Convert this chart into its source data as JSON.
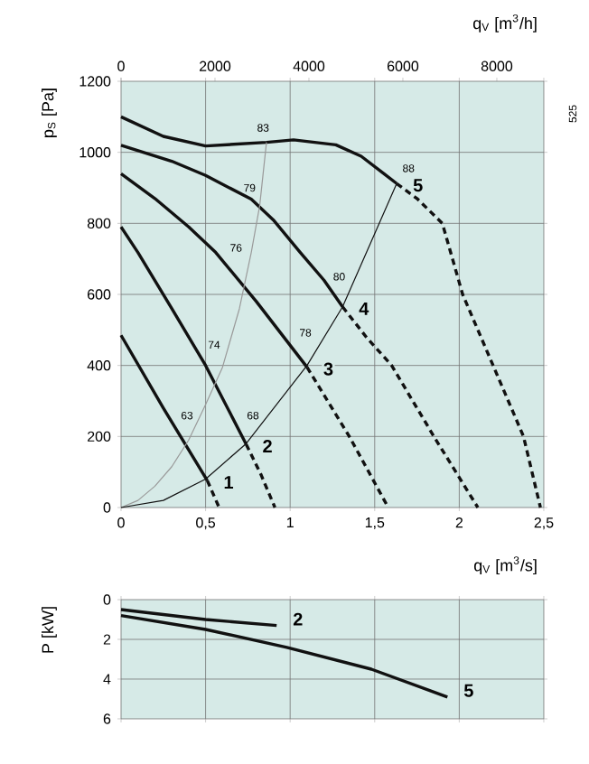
{
  "chart_data": [
    {
      "type": "line",
      "xlabel": "q$_{V}$ [m$^{3}$/s]",
      "ylabel": "p$_{S}$ [Pa]",
      "x2label": "q$_{V}$ [m$^{3}$/h]",
      "xlim": [
        0,
        2.5
      ],
      "xticks": [
        0,
        {
          "value": 0.5,
          "label": "0,5"
        },
        1,
        {
          "value": 1.5,
          "label": "1,5"
        },
        2,
        {
          "value": 2.5,
          "label": "2,5"
        }
      ],
      "x2lim": [
        0,
        9000
      ],
      "x2ticks": [
        0,
        2000,
        4000,
        6000,
        8000
      ],
      "ylim": [
        0,
        1200
      ],
      "yticks": [
        0,
        200,
        400,
        600,
        800,
        1000,
        1200
      ],
      "grid": true,
      "series": [
        {
          "name": "1",
          "color": "#111111",
          "line_style": "solid",
          "x": [
            0,
            0.25,
            0.51
          ],
          "values": [
            485,
            280,
            76
          ]
        },
        {
          "color": "#111111",
          "line_style": "dashed",
          "x": [
            0.51,
            0.58
          ],
          "values": [
            76,
            0
          ]
        },
        {
          "name": "2",
          "color": "#111111",
          "line_style": "solid",
          "x": [
            0,
            0.1,
            0.3,
            0.5,
            0.74
          ],
          "values": [
            790,
            718,
            560,
            400,
            178
          ]
        },
        {
          "color": "#111111",
          "line_style": "dashed",
          "x": [
            0.74,
            0.83,
            0.91
          ],
          "values": [
            178,
            90,
            0
          ]
        },
        {
          "name": "3",
          "color": "#111111",
          "line_style": "solid",
          "x": [
            0,
            0.2,
            0.4,
            0.56,
            0.8,
            1.1
          ],
          "values": [
            940,
            870,
            790,
            718,
            580,
            395
          ]
        },
        {
          "color": "#111111",
          "line_style": "dashed",
          "x": [
            1.1,
            1.35,
            1.58
          ],
          "values": [
            395,
            200,
            0
          ]
        },
        {
          "name": "4",
          "color": "#111111",
          "line_style": "solid",
          "x": [
            0,
            0.3,
            0.5,
            0.77,
            0.9,
            1.06,
            1.2,
            1.31
          ],
          "values": [
            1020,
            975,
            935,
            868,
            810,
            718,
            640,
            565
          ]
        },
        {
          "color": "#111111",
          "line_style": "dashed",
          "x": [
            1.31,
            1.45,
            1.6,
            1.85,
            2.11
          ],
          "values": [
            565,
            480,
            400,
            200,
            0
          ]
        },
        {
          "name": "5",
          "color": "#111111",
          "line_style": "solid",
          "x": [
            0,
            0.25,
            0.5,
            0.86,
            1.02,
            1.27,
            1.42,
            1.56,
            1.63
          ],
          "values": [
            1100,
            1045,
            1018,
            1028,
            1035,
            1021,
            989,
            938,
            912
          ]
        },
        {
          "color": "#111111",
          "line_style": "dashed",
          "x": [
            1.63,
            1.75,
            1.9,
            2.02,
            2.2,
            2.38,
            2.48
          ],
          "values": [
            912,
            870,
            800,
            600,
            400,
            200,
            0
          ]
        },
        {
          "color": "#9a9a9a",
          "x": [
            0,
            0.1,
            0.2,
            0.3,
            0.4,
            0.5,
            0.6,
            0.7,
            0.77,
            0.82,
            0.86
          ],
          "values": [
            0,
            20,
            60,
            115,
            190,
            290,
            395,
            560,
            718,
            850,
            1028
          ]
        },
        {
          "color": "#111111",
          "x": [
            0,
            0.25,
            0.5,
            0.74,
            1.1,
            1.31,
            1.63
          ],
          "values": [
            0,
            20,
            80,
            180,
            400,
            565,
            912
          ]
        }
      ],
      "annotations": [
        {
          "text": "63",
          "x": 0.39,
          "y": 259
        },
        {
          "text": "74",
          "x": 0.55,
          "y": 458
        },
        {
          "text": "76",
          "x": 0.68,
          "y": 731
        },
        {
          "text": "79",
          "x": 0.76,
          "y": 900
        },
        {
          "text": "83",
          "x": 0.84,
          "y": 1069
        },
        {
          "text": "68",
          "x": 0.78,
          "y": 259
        },
        {
          "text": "78",
          "x": 1.09,
          "y": 492
        },
        {
          "text": "80",
          "x": 1.29,
          "y": 650
        },
        {
          "text": "88",
          "x": 1.7,
          "y": 955
        },
        "525"
      ]
    },
    {
      "type": "line",
      "ylabel": "P [kW]",
      "xlim": [
        0,
        2.5
      ],
      "xticks": [
        0,
        0.5,
        1,
        1.5,
        2,
        2.5
      ],
      "ylim": [
        6,
        0
      ],
      "yticks": [
        0,
        2,
        4,
        6
      ],
      "grid": true,
      "tick_labels": "y",
      "series": [
        {
          "name": "2",
          "color": "#111111",
          "line_style": "solid",
          "x": [
            0,
            0.5,
            0.92
          ],
          "values": [
            0.5,
            1.0,
            1.3
          ]
        },
        {
          "name": "5",
          "color": "#111111",
          "line_style": "solid",
          "x": [
            0,
            0.5,
            0.98,
            1.48,
            1.93
          ],
          "values": [
            0.8,
            1.5,
            2.4,
            3.5,
            4.9
          ]
        }
      ]
    }
  ]
}
